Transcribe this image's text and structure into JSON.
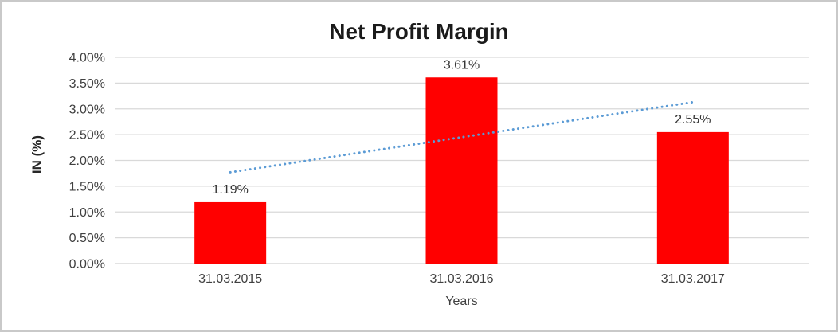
{
  "chart_data": {
    "type": "bar",
    "title": "Net Profit Margin",
    "categories": [
      "31.03.2015",
      "31.03.2016",
      "31.03.2017"
    ],
    "series": [
      {
        "name": "Net Profit Margin",
        "values": [
          1.19,
          3.61,
          2.55
        ]
      }
    ],
    "data_labels": [
      "1.19%",
      "3.61%",
      "2.55%"
    ],
    "xlabel": "Years",
    "ylabel": "IN (%)",
    "ylim": [
      0,
      4
    ],
    "ytick_step": 0.5,
    "ytick_labels": [
      "0.00%",
      "0.50%",
      "1.00%",
      "1.50%",
      "2.00%",
      "2.50%",
      "3.00%",
      "3.50%",
      "4.00%"
    ],
    "grid": true,
    "legend": "none",
    "trendline": {
      "type": "linear",
      "style": "dotted",
      "color": "#5b9bd5"
    },
    "colors": {
      "bar": "#ff0000",
      "gridline": "#d9d9d9",
      "axis_line": "#d2d2d2",
      "tick_text": "#404040",
      "data_label_text": "#333333",
      "title_text": "#1a1a1a"
    }
  }
}
